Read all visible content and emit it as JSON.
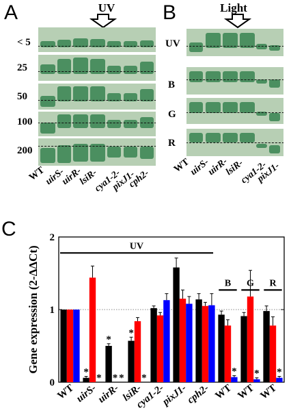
{
  "panel_a": {
    "letter": "A",
    "header": "UV",
    "concentrations": [
      "< 5",
      "25",
      "50",
      "100",
      "200"
    ],
    "strains": [
      "WT",
      "uirS-",
      "uirR-",
      "lsiR-",
      "cya1-2-",
      "pixJ1-",
      "cph2-"
    ]
  },
  "panel_b": {
    "letter": "B",
    "header": "Light",
    "conditions": [
      "UV",
      "B",
      "G",
      "R"
    ],
    "strains": [
      "WT",
      "uirS-",
      "uirR-",
      "lsiR-",
      "cya1-2-",
      "pixJ1-"
    ]
  },
  "panel_c": {
    "letter": "C",
    "chart_data": {
      "type": "bar",
      "ylabel": "Gene expression (2-ΔΔCt)",
      "ylim": [
        0,
        2
      ],
      "yticks": [
        "0",
        "1",
        "2"
      ],
      "reference_line": 1,
      "categories": [
        "WT",
        "uirS-",
        "uirR-",
        "lsiR-",
        "cya1-2-",
        "pixJ1-",
        "cph2-",
        "WT",
        "WT",
        "WT"
      ],
      "italic": [
        false,
        true,
        true,
        true,
        true,
        true,
        true,
        false,
        false,
        false
      ],
      "series": [
        {
          "color": "#000000",
          "values": [
            1.0,
            0.06,
            0.5,
            0.57,
            1.02,
            1.58,
            1.14,
            0.93,
            0.91,
            0.98
          ],
          "errors": [
            0,
            0.02,
            0.03,
            0.05,
            0.03,
            0.13,
            0.08,
            0.05,
            0.05,
            0.07
          ]
        },
        {
          "color": "#ff0000",
          "values": [
            1.0,
            1.44,
            0.0,
            0.84,
            0.92,
            1.15,
            1.05,
            0.78,
            1.18,
            0.78
          ],
          "errors": [
            0,
            0.16,
            0,
            0.05,
            0.04,
            0.12,
            0.05,
            0.08,
            0.36,
            0.12
          ]
        },
        {
          "color": "#0000ff",
          "values": [
            1.0,
            0.0,
            0.0,
            0.0,
            1.13,
            1.08,
            1.06,
            0.07,
            0.04,
            0.06
          ],
          "errors": [
            0,
            0,
            0,
            0,
            0.09,
            0.1,
            0.16,
            0.02,
            0.02,
            0.02
          ]
        }
      ],
      "asterisks": [
        [],
        [
          0,
          2
        ],
        [
          0,
          1,
          2
        ],
        [
          0,
          2
        ],
        [],
        [],
        [],
        [
          2
        ],
        [
          2
        ],
        [
          2
        ]
      ],
      "group_labels": [
        {
          "label": "UV",
          "from": 0,
          "to": 6
        },
        {
          "label": "B",
          "from": 7,
          "to": 7
        },
        {
          "label": "G",
          "from": 8,
          "to": 8
        },
        {
          "label": "R",
          "from": 9,
          "to": 9
        }
      ]
    }
  }
}
